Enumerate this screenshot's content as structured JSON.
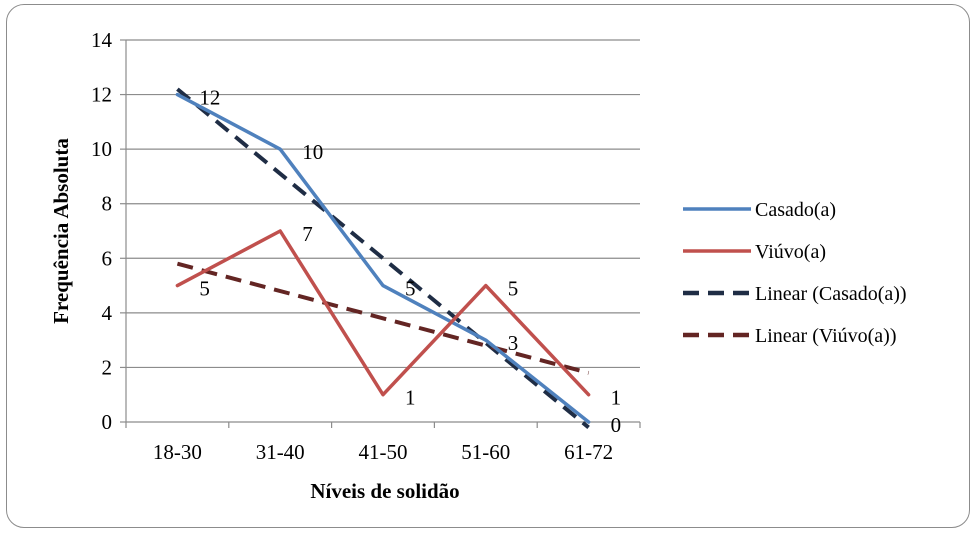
{
  "chart_data": {
    "type": "line",
    "title": "",
    "xlabel": "Níveis de solidão",
    "ylabel": "Frequência Absoluta",
    "categories": [
      "18-30",
      "31-40",
      "41-50",
      "51-60",
      "61-72"
    ],
    "ylim": [
      0,
      14
    ],
    "yticks": [
      "0",
      "2",
      "4",
      "6",
      "8",
      "10",
      "12",
      "14"
    ],
    "grid": true,
    "legend_position": "right",
    "series": [
      {
        "name": "Casado(a)",
        "values": [
          12,
          10,
          5,
          3,
          0
        ],
        "color": "#4F81BD",
        "data_labels": [
          "12",
          "10",
          "5",
          "3",
          "0"
        ]
      },
      {
        "name": "Viúvo(a)",
        "values": [
          5,
          7,
          1,
          5,
          1
        ],
        "color": "#C0504D",
        "data_labels": [
          "5",
          "7",
          "1",
          "5",
          "1"
        ]
      }
    ],
    "trendlines": [
      {
        "name": "Linear (Casado(a))",
        "type": "linear",
        "of": "Casado(a)",
        "color": "#1F2D45",
        "dash": true
      },
      {
        "name": "Linear (Viúvo(a))",
        "type": "linear",
        "of": "Viúvo(a)",
        "color": "#632523",
        "dash": true
      }
    ]
  }
}
